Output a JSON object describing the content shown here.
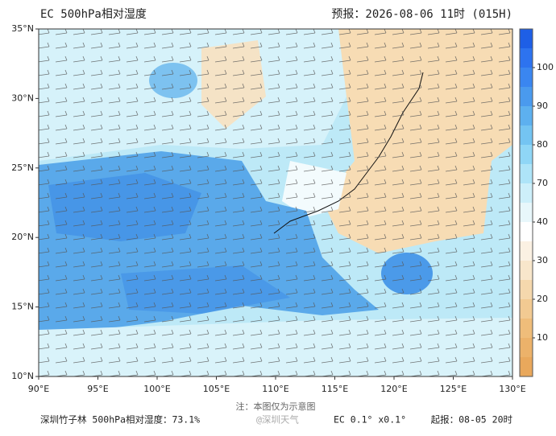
{
  "header": {
    "title": "EC 500hPa相对湿度",
    "forecast": "预报：2026-08-06 11时 (015H)"
  },
  "map": {
    "lat_labels": [
      "35°N",
      "30°N",
      "25°N",
      "20°N",
      "15°N",
      "10°N"
    ],
    "lon_labels": [
      "90°E",
      "95°E",
      "100°E",
      "105°E",
      "110°E",
      "115°E",
      "120°E",
      "125°E",
      "130°E"
    ]
  },
  "colorbar": {
    "labels": [
      100,
      90,
      80,
      70,
      40,
      30,
      20,
      10
    ],
    "colors": [
      "#1e5fe6",
      "#2d73ef",
      "#3a86f0",
      "#4a9aee",
      "#5db0ef",
      "#74c4f2",
      "#8fd6f6",
      "#aee4f8",
      "#cdeffa",
      "#e8f7fb",
      "#ffffff",
      "#fbf1e3",
      "#f8e6cb",
      "#f5d8ad",
      "#f2ca92",
      "#efbd7a",
      "#ecb26a",
      "#e9a85c"
    ]
  },
  "footer": {
    "note": "注：本图仅为示意图",
    "station": "深圳竹子林 500hPa相对湿度：73.1%",
    "watermark": "@深圳天气",
    "resolution": "EC 0.1° x0.1°",
    "init": "起报：08-05 20时"
  }
}
